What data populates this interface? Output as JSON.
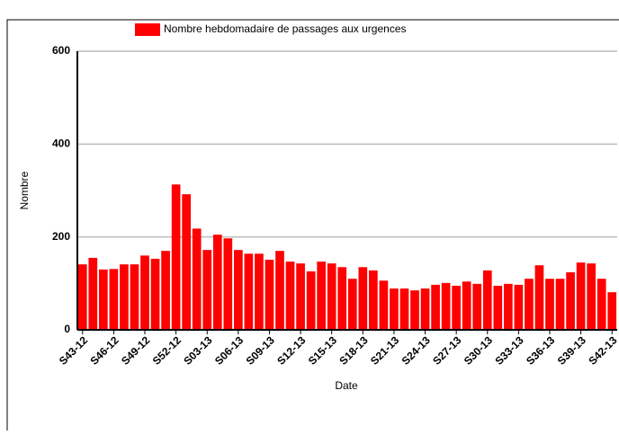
{
  "chart_data": {
    "type": "bar",
    "legend": "Nombre hebdomadaire de passages aux urgences",
    "xlabel": "Date",
    "ylabel": "Nombre",
    "color": "#ff0000",
    "categories": [
      "S43-12",
      null,
      null,
      "S46-12",
      null,
      null,
      "S49-12",
      null,
      null,
      "S52-12",
      null,
      null,
      "S03-13",
      null,
      null,
      "S06-13",
      null,
      null,
      "S09-13",
      null,
      null,
      "S12-13",
      null,
      null,
      "S15-13",
      null,
      null,
      "S18-13",
      null,
      null,
      "S21-13",
      null,
      null,
      "S24-13",
      null,
      null,
      "S27-13",
      null,
      null,
      "S30-13",
      null,
      null,
      "S33-13",
      null,
      null,
      "S36-13",
      null,
      null,
      "S39-13",
      null,
      null,
      "S42-13"
    ],
    "values": [
      141,
      155,
      130,
      131,
      141,
      141,
      160,
      153,
      170,
      313,
      292,
      218,
      172,
      205,
      197,
      172,
      164,
      164,
      151,
      170,
      147,
      143,
      126,
      147,
      143,
      135,
      110,
      135,
      128,
      106,
      89,
      89,
      85,
      89,
      97,
      101,
      95,
      104,
      99,
      128,
      95,
      99,
      97,
      110,
      139,
      110,
      110,
      124,
      145,
      143,
      110,
      81
    ],
    "ylim": [
      0,
      600
    ],
    "yticks": [
      0,
      200,
      400,
      600
    ],
    "grid": true
  }
}
